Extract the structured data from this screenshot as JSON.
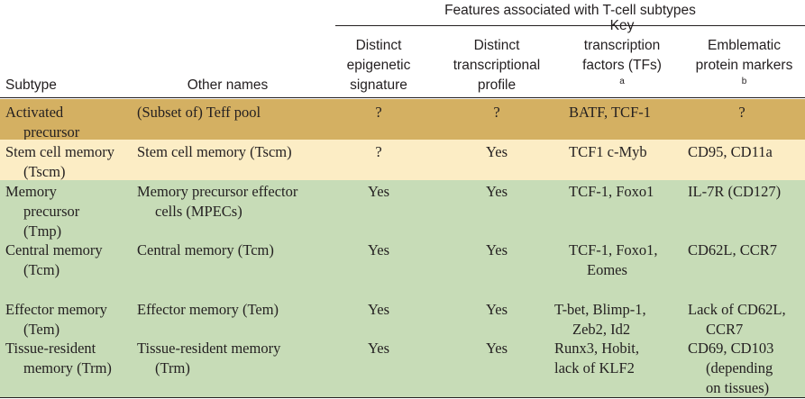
{
  "colors": {
    "row_activated": "#d4b062",
    "row_stem": "#fcedc5",
    "row_green": "#c7dcb7",
    "text": "#231f20"
  },
  "table": {
    "group_header": "Features associated with T-cell subtypes",
    "columns": {
      "subtype": [
        "Subtype"
      ],
      "other_names": [
        "Other names"
      ],
      "epigenetic": [
        "Distinct",
        "epigenetic",
        "signature"
      ],
      "transcriptional": [
        "Distinct",
        "transcriptional",
        "profile"
      ],
      "tfs": [
        "Key",
        "transcription",
        "factors (TFs)"
      ],
      "tfs_sup": "a",
      "markers": [
        "Emblematic",
        "protein markers"
      ],
      "markers_sup": "b"
    },
    "rows": [
      {
        "subtype": [
          "Activated",
          "precursor"
        ],
        "other_names": [
          "(Subset of) Teff pool"
        ],
        "epigenetic": "?",
        "transcriptional": "?",
        "tfs": [
          "BATF, TCF-1"
        ],
        "markers": [
          "?"
        ]
      },
      {
        "subtype": [
          "Stem cell memory",
          "(Tscm)"
        ],
        "other_names": [
          "Stem cell memory (Tscm)"
        ],
        "epigenetic": "?",
        "transcriptional": "Yes",
        "tfs": [
          "TCF1 c-Myb"
        ],
        "markers": [
          "CD95, CD11a"
        ]
      },
      {
        "subtype": [
          "Memory",
          "precursor",
          "(Tmp)"
        ],
        "other_names": [
          "Memory precursor effector",
          "cells (MPECs)"
        ],
        "epigenetic": "Yes",
        "transcriptional": "Yes",
        "tfs": [
          "TCF-1, Foxo1"
        ],
        "markers": [
          "IL-7R (CD127)"
        ]
      },
      {
        "subtype": [
          "Central memory",
          "(Tcm)"
        ],
        "other_names": [
          "Central memory (Tcm)"
        ],
        "epigenetic": "Yes",
        "transcriptional": "Yes",
        "tfs": [
          "TCF-1, Foxo1,",
          "Eomes"
        ],
        "markers": [
          "CD62L, CCR7"
        ]
      },
      {
        "subtype": [
          "Effector memory",
          "(Tem)"
        ],
        "other_names": [
          "Effector memory (Tem)"
        ],
        "epigenetic": "Yes",
        "transcriptional": "Yes",
        "tfs": [
          "T-bet, Blimp-1,",
          "Zeb2, Id2"
        ],
        "markers": [
          "Lack of CD62L,",
          "CCR7"
        ]
      },
      {
        "subtype": [
          "Tissue-resident",
          "memory (Trm)"
        ],
        "other_names": [
          "Tissue-resident memory",
          "(Trm)"
        ],
        "epigenetic": "Yes",
        "transcriptional": "Yes",
        "tfs": [
          "Runx3, Hobit,",
          "lack of KLF2"
        ],
        "markers": [
          "CD69, CD103",
          "(depending",
          "on tissues)"
        ]
      }
    ]
  }
}
